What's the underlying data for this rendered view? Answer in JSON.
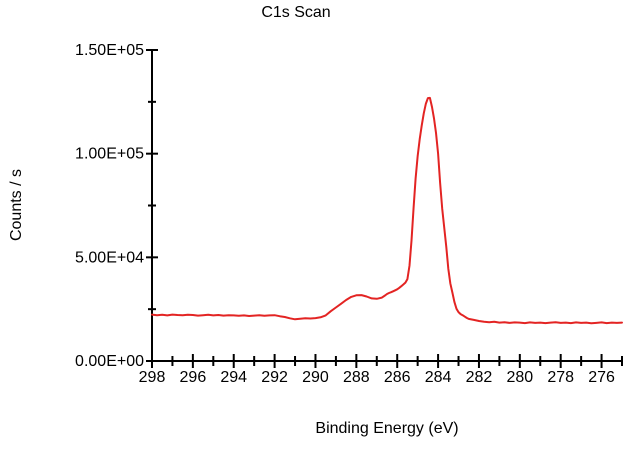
{
  "chart_data": {
    "type": "line",
    "title": "C1s Scan",
    "xlabel": "Binding Energy (eV)",
    "ylabel": "Counts / s",
    "line_color": "#e32423",
    "axis_color": "#000000",
    "x_axis": {
      "min": 275,
      "max": 298,
      "inverted": true,
      "minor_tick_step": 1,
      "label_step": 2,
      "tick_labels": [
        "298",
        "296",
        "294",
        "292",
        "290",
        "288",
        "286",
        "284",
        "282",
        "280",
        "278",
        "276"
      ],
      "label_values": [
        298,
        296,
        294,
        292,
        290,
        288,
        286,
        284,
        282,
        280,
        278,
        276
      ]
    },
    "y_axis": {
      "min": 0,
      "max": 150000,
      "major_tick_step": 50000,
      "minor_tick_step": 25000,
      "tick_labels": [
        "0.00E+00",
        "5.00E+04",
        "1.00E+05",
        "1.50E+05"
      ],
      "label_values": [
        0,
        50000,
        100000,
        150000
      ]
    },
    "grid": false,
    "legend": false,
    "series": [
      {
        "name": "C1s",
        "x": [
          298,
          297.75,
          297.5,
          297.25,
          297,
          296.75,
          296.5,
          296.25,
          296,
          295.75,
          295.5,
          295.25,
          295,
          294.75,
          294.5,
          294.25,
          294,
          293.75,
          293.5,
          293.25,
          293,
          292.75,
          292.5,
          292.25,
          292,
          291.75,
          291.5,
          291.25,
          291,
          290.75,
          290.5,
          290.25,
          290,
          289.75,
          289.5,
          289.25,
          289,
          288.75,
          288.5,
          288.25,
          288,
          287.75,
          287.5,
          287.25,
          287,
          286.75,
          286.6,
          286.5,
          286.4,
          286.3,
          286.2,
          286.1,
          286.0,
          285.9,
          285.8,
          285.7,
          285.6,
          285.5,
          285.4,
          285.3,
          285.2,
          285.1,
          285.0,
          284.9,
          284.8,
          284.7,
          284.6,
          284.5,
          284.4,
          284.3,
          284.2,
          284.1,
          284.0,
          283.9,
          283.8,
          283.7,
          283.6,
          283.5,
          283.4,
          283.3,
          283.2,
          283.1,
          283.0,
          282.9,
          282.8,
          282.7,
          282.6,
          282.5,
          282.25,
          282,
          281.75,
          281.5,
          281.25,
          281,
          280.75,
          280.5,
          280.25,
          280,
          279.75,
          279.5,
          279.25,
          279,
          278.75,
          278.5,
          278.25,
          278,
          277.75,
          277.5,
          277.25,
          277,
          276.75,
          276.5,
          276.25,
          276,
          275.75,
          275.5,
          275.25,
          275
        ],
        "y": [
          22400,
          22100,
          22300,
          22000,
          22400,
          22200,
          22100,
          22300,
          22200,
          21900,
          22100,
          22300,
          22000,
          22200,
          21900,
          22100,
          22000,
          21800,
          22000,
          21700,
          21900,
          22100,
          21800,
          22000,
          22100,
          21600,
          21200,
          20600,
          20100,
          20400,
          20600,
          20500,
          20700,
          21100,
          22000,
          24000,
          25800,
          27600,
          29400,
          30900,
          31700,
          31800,
          31100,
          30200,
          30000,
          30600,
          31600,
          32300,
          32800,
          33200,
          33600,
          34100,
          34600,
          35300,
          36100,
          36900,
          37800,
          39500,
          46000,
          58000,
          74000,
          88000,
          99000,
          107000,
          113500,
          119500,
          124000,
          126800,
          126900,
          122500,
          117000,
          110000,
          100000,
          86000,
          73500,
          64500,
          55000,
          44500,
          37500,
          33000,
          28500,
          25200,
          23600,
          22600,
          22100,
          21400,
          20800,
          20300,
          19800,
          19300,
          18900,
          18700,
          18900,
          18500,
          18700,
          18400,
          18600,
          18500,
          18300,
          18600,
          18400,
          18500,
          18300,
          18500,
          18700,
          18400,
          18500,
          18300,
          18600,
          18400,
          18500,
          18200,
          18400,
          18600,
          18300,
          18500,
          18400,
          18500
        ]
      }
    ]
  }
}
